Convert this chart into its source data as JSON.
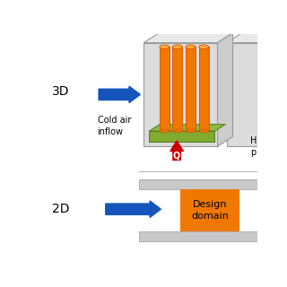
{
  "bg_color": "#ffffff",
  "label_3d": "3D",
  "label_2d": "2D",
  "cold_air_label": "Cold air\ninflow",
  "design_domain_label": "Design\ndomain",
  "heat_label": "H\np",
  "arrow_blue_color": "#1555bb",
  "arrow_red_color": "#cc0000",
  "orange_color": "#f07800",
  "green_color": "#80aa30",
  "box_edge_color": "#999999",
  "face_gray": "#dcdcdc",
  "top_gray": "#e8e8e8",
  "side_gray": "#cccccc",
  "channel_gray": "#c8c8c8"
}
